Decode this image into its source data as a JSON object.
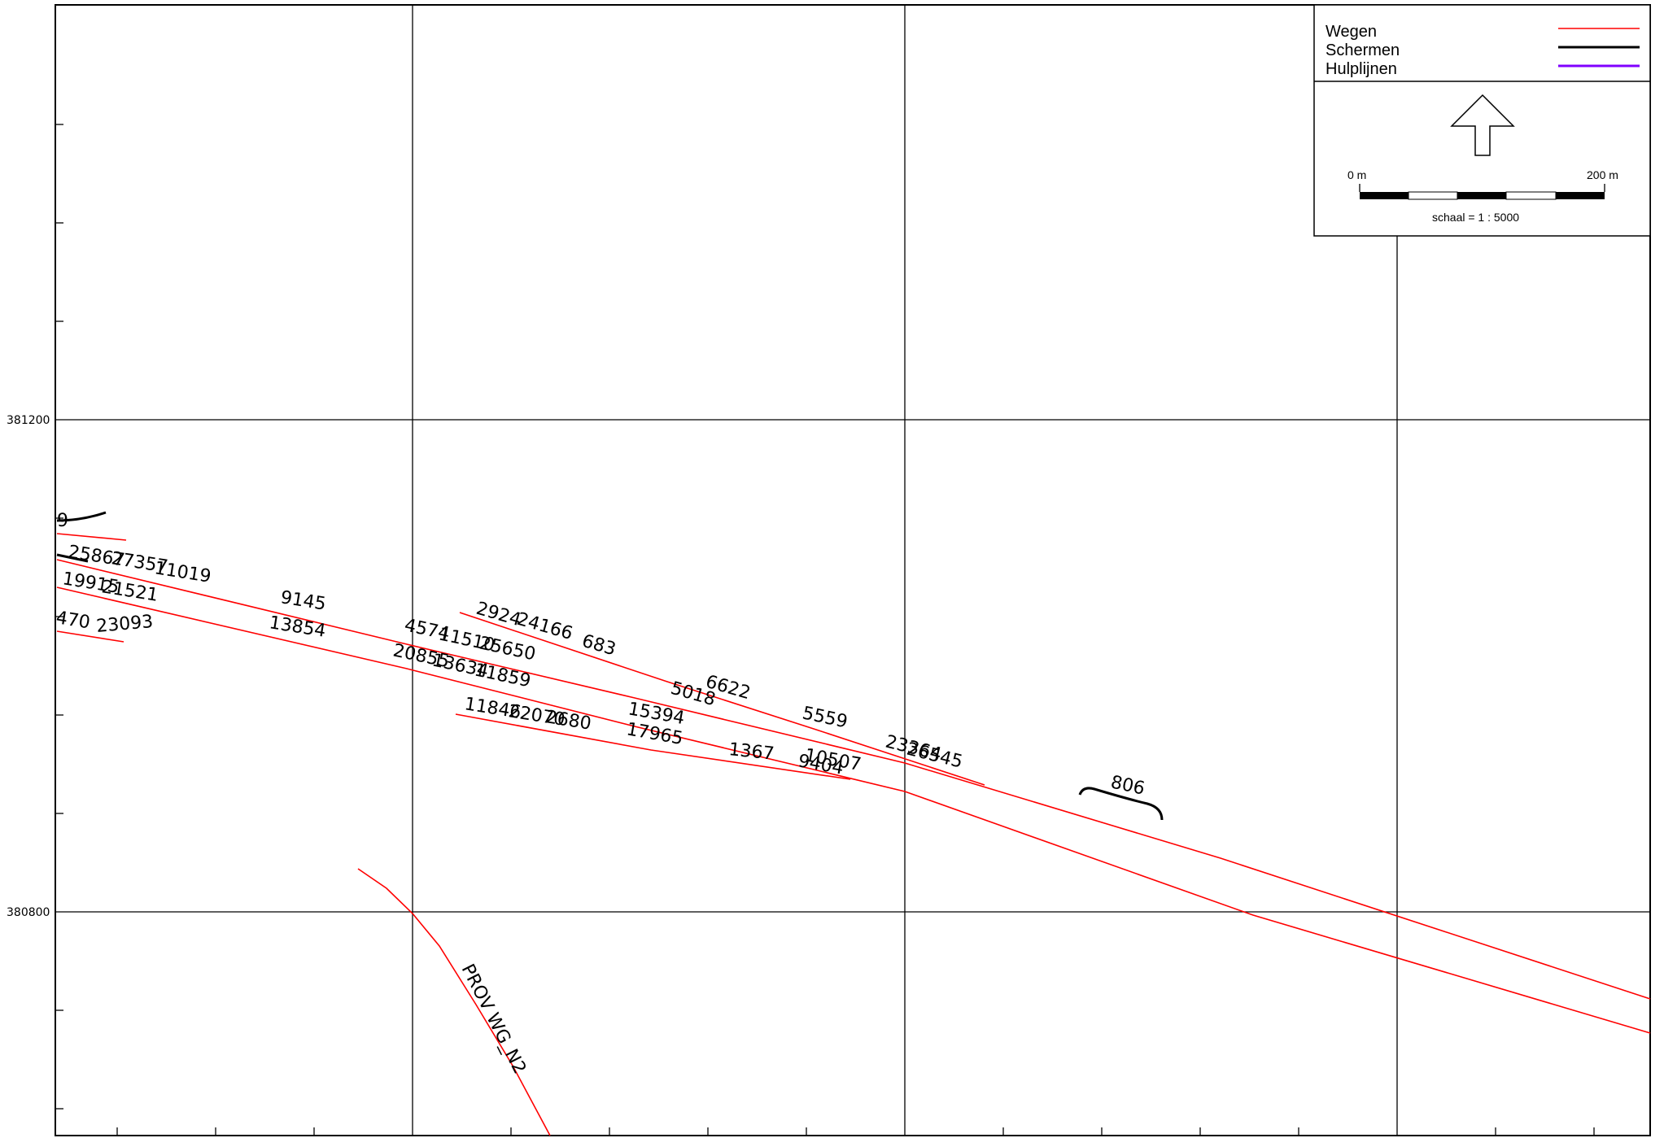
{
  "legend": {
    "items": [
      {
        "label": "Wegen",
        "color": "#ff0000"
      },
      {
        "label": "Schermen",
        "color": "#000000"
      },
      {
        "label": "Hulplijnen",
        "color": "#8000ff"
      }
    ],
    "scale_start": "0 m",
    "scale_end": "200 m",
    "scale_text": "schaal = 1 : 5000"
  },
  "axis": {
    "y_labels": [
      "381200",
      "380800"
    ]
  },
  "colors": {
    "road": "#ff0000",
    "screen": "#000000",
    "grid": "#000000"
  },
  "labels": {
    "road_name": "PROV WG_N2",
    "segments": [
      "9",
      "25867",
      "27357",
      "11019",
      "19915",
      "21521",
      "470",
      "23093",
      "9145",
      "13854",
      "4574",
      "11510",
      "25650",
      "20855",
      "13634",
      "11859",
      "2924",
      "24166",
      "683",
      "5018",
      "6622",
      "5559",
      "11846",
      "22070",
      "2680",
      "15394",
      "17965",
      "1367",
      "10507",
      "9404",
      "23364",
      "26545",
      "806"
    ]
  }
}
